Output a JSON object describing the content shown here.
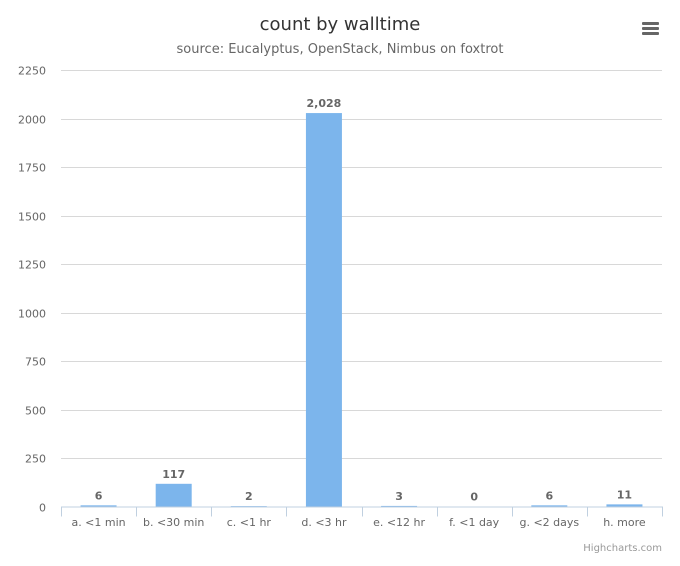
{
  "chart_data": {
    "type": "bar",
    "title": "count by walltime",
    "subtitle": "source: Eucalyptus, OpenStack, Nimbus on foxtrot",
    "categories": [
      "a. <1 min",
      "b. <30 min",
      "c. <1 hr",
      "d. <3 hr",
      "e. <12 hr",
      "f. <1 day",
      "g. <2 days",
      "h. more"
    ],
    "values": [
      6,
      117,
      2,
      2028,
      3,
      0,
      6,
      11
    ],
    "data_labels": [
      "6",
      "117",
      "2",
      "2,028",
      "3",
      "0",
      "6",
      "11"
    ],
    "ylim": [
      0,
      2250
    ],
    "yticks": [
      "0",
      "250",
      "500",
      "750",
      "1000",
      "1250",
      "1500",
      "1750",
      "2000",
      "2250"
    ],
    "grid": true,
    "bar_color": "#7cb5ec"
  },
  "credits": "Highcharts.com",
  "menu_icon": "hamburger-menu-icon"
}
